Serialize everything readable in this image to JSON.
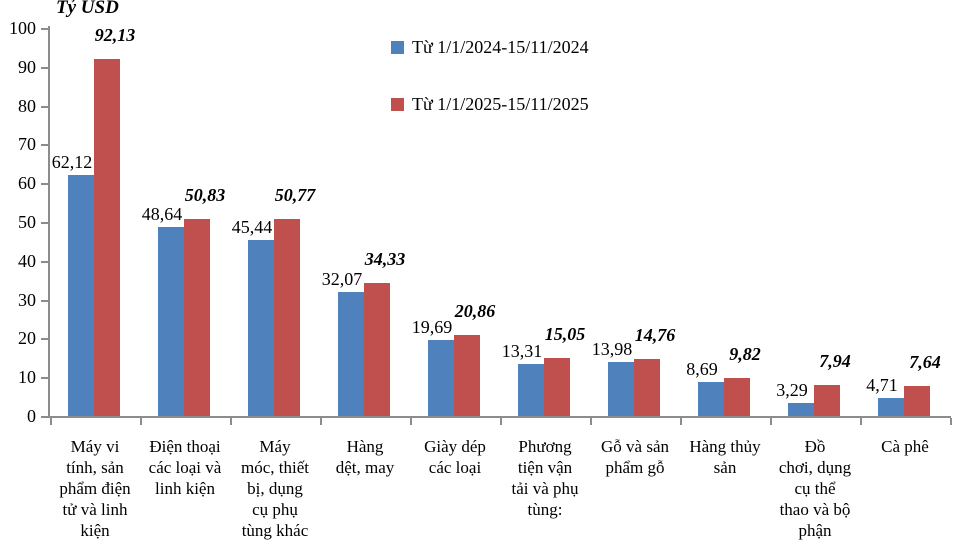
{
  "title": "Tỷ USD",
  "colors": {
    "series_2024": "#4F81BD",
    "series_2025": "#C0504D",
    "axis": "#8c8c8c",
    "background": "#ffffff",
    "text": "#000000"
  },
  "legend": {
    "items": [
      {
        "label": "Từ 1/1/2024-15/11/2024",
        "color": "#4F81BD"
      },
      {
        "label": "Từ 1/1/2025-15/11/2025",
        "color": "#C0504D"
      }
    ]
  },
  "chart_data": {
    "type": "bar",
    "title": "Tỷ USD",
    "xlabel": "",
    "ylabel": "Tỷ USD",
    "ylim": [
      0,
      100
    ],
    "y_ticks": [
      0,
      10,
      20,
      30,
      40,
      50,
      60,
      70,
      80,
      90,
      100
    ],
    "grid": false,
    "legend_position": "top-center",
    "categories": [
      "Máy vi tính, sản phẩm điện tử và linh kiện",
      "Điện thoại các loại và linh kiện",
      "Máy móc, thiết bị, dụng cụ phụ tùng khác",
      "Hàng dệt, may",
      "Giày dép các loại",
      "Phương tiện vận tải và phụ tùng:",
      "Gỗ và sản phẩm gỗ",
      "Hàng thủy sản",
      "Đồ chơi, dụng cụ thể thao và bộ phận",
      "Cà phê"
    ],
    "categories_wrapped": [
      [
        "Máy vi",
        "tính, sản",
        "phẩm điện",
        "tử và linh",
        "kiện"
      ],
      [
        "Điện thoại",
        "các loại và",
        "linh kiện"
      ],
      [
        "Máy",
        "móc, thiết",
        "bị, dụng",
        "cụ phụ",
        "tùng khác"
      ],
      [
        "Hàng",
        "dệt, may"
      ],
      [
        "Giày dép",
        "các loại"
      ],
      [
        "Phương",
        "tiện vận",
        "tải và phụ",
        "tùng:"
      ],
      [
        "Gỗ và sản",
        "phẩm gỗ"
      ],
      [
        "Hàng thủy",
        "sản"
      ],
      [
        "Đồ",
        "chơi, dụng",
        "cụ thể",
        "thao và bộ",
        "phận"
      ],
      [
        "Cà phê"
      ]
    ],
    "series": [
      {
        "name": "Từ 1/1/2024-15/11/2024",
        "color": "#4F81BD",
        "values": [
          62.12,
          48.64,
          45.44,
          32.07,
          19.69,
          13.31,
          13.98,
          8.69,
          3.29,
          4.71
        ],
        "labels": [
          "62,12",
          "48,64",
          "45,44",
          "32,07",
          "19,69",
          "13,31",
          "13,98",
          "8,69",
          "3,29",
          "4,71"
        ]
      },
      {
        "name": "Từ 1/1/2025-15/11/2025",
        "color": "#C0504D",
        "values": [
          92.13,
          50.83,
          50.77,
          34.33,
          20.86,
          15.05,
          14.76,
          9.82,
          7.94,
          7.64
        ],
        "labels": [
          "92,13",
          "50,83",
          "50,77",
          "34,33",
          "20,86",
          "15,05",
          "14,76",
          "9,82",
          "7,94",
          "7,64"
        ]
      }
    ]
  }
}
